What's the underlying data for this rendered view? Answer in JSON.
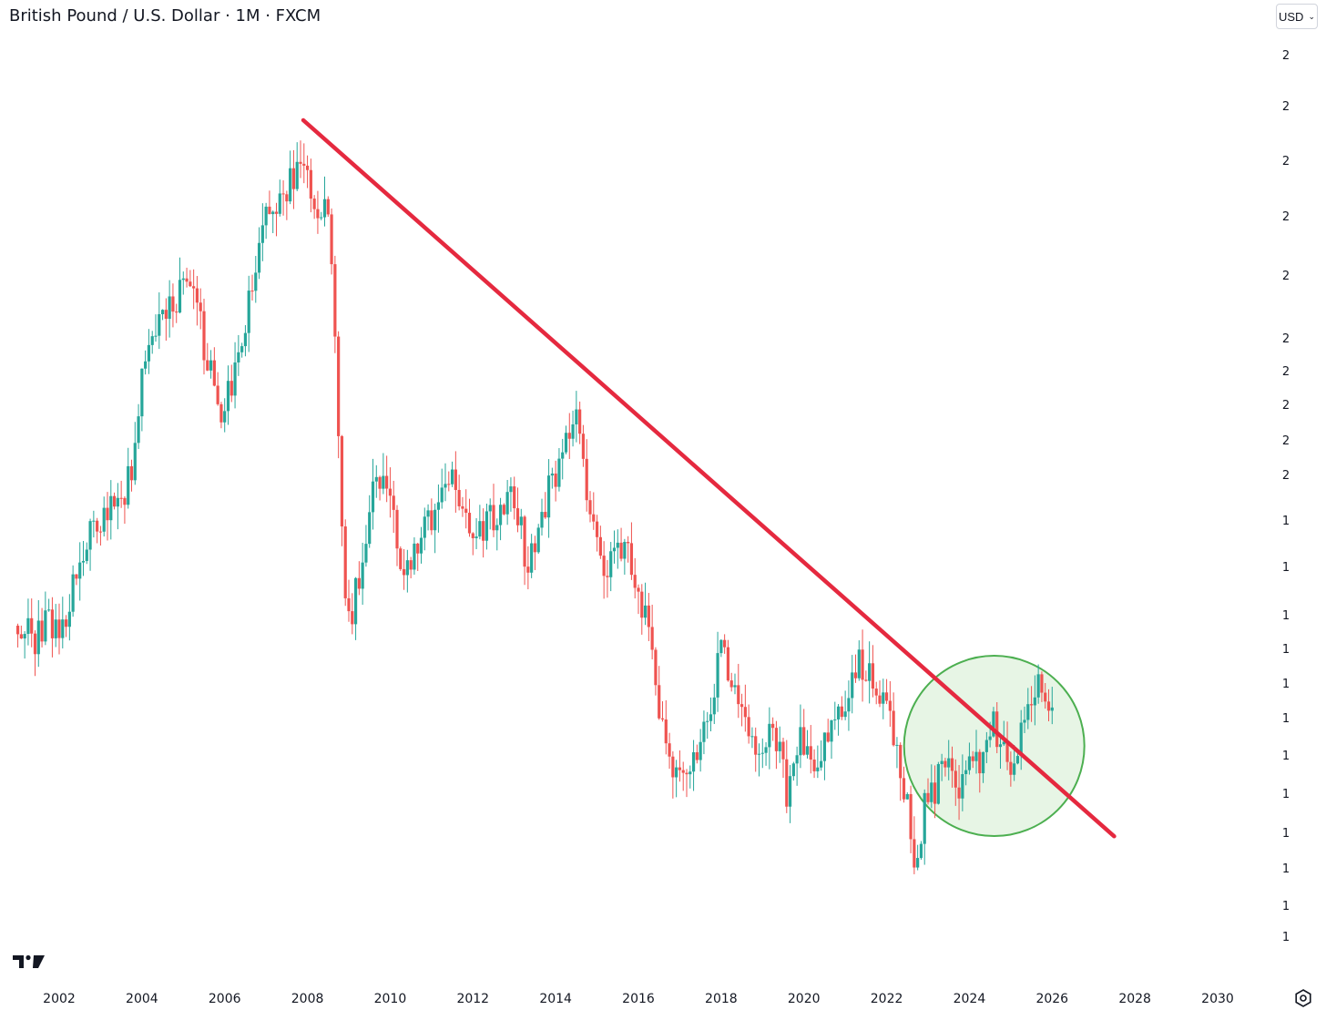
{
  "header": {
    "title": "British Pound / U.S. Dollar · 1M · FXCM",
    "currency_label": "USD",
    "currency_icon": "chevron-down-icon"
  },
  "colors": {
    "up": "#26a69a",
    "down": "#ef5350",
    "trendline": "#e5293f",
    "highlight_fill": "#e3f3e0",
    "highlight_stroke": "#4caf50"
  },
  "chart_data": {
    "type": "candlestick",
    "symbol": "GBPUSD",
    "interval": "1M",
    "source": "FXCM",
    "x_axis": {
      "ticks": [
        "2002",
        "2004",
        "2006",
        "2008",
        "2010",
        "2012",
        "2014",
        "2016",
        "2018",
        "2020",
        "2022",
        "2024",
        "2026",
        "2028",
        "2030"
      ],
      "range": [
        2001.0,
        2031.2
      ]
    },
    "y_axis": {
      "position": "right",
      "tick_labels": [
        "2",
        "2",
        "2",
        "2",
        "2",
        "2",
        "2",
        "2",
        "2",
        "2",
        "1",
        "1",
        "1",
        "1",
        "1",
        "1",
        "1",
        "1",
        "1",
        "1",
        "1",
        "1"
      ],
      "range_approx": [
        1.02,
        2.13
      ]
    },
    "series": [
      {
        "anchors": [
          [
            2001.0,
            1.44
          ],
          [
            2001.4,
            1.42
          ],
          [
            2001.8,
            1.45
          ],
          [
            2002.0,
            1.42
          ],
          [
            2002.5,
            1.53
          ],
          [
            2003.0,
            1.58
          ],
          [
            2003.5,
            1.61
          ],
          [
            2003.8,
            1.64
          ],
          [
            2004.0,
            1.78
          ],
          [
            2004.3,
            1.82
          ],
          [
            2004.6,
            1.84
          ],
          [
            2005.0,
            1.89
          ],
          [
            2005.3,
            1.86
          ],
          [
            2005.6,
            1.78
          ],
          [
            2005.9,
            1.72
          ],
          [
            2006.2,
            1.75
          ],
          [
            2006.6,
            1.87
          ],
          [
            2007.0,
            1.97
          ],
          [
            2007.5,
            2.01
          ],
          [
            2007.9,
            2.04
          ],
          [
            2008.2,
            1.99
          ],
          [
            2008.5,
            1.98
          ],
          [
            2008.7,
            1.78
          ],
          [
            2008.85,
            1.53
          ],
          [
            2009.0,
            1.44
          ],
          [
            2009.3,
            1.52
          ],
          [
            2009.6,
            1.64
          ],
          [
            2010.0,
            1.62
          ],
          [
            2010.3,
            1.49
          ],
          [
            2010.6,
            1.55
          ],
          [
            2011.0,
            1.58
          ],
          [
            2011.4,
            1.64
          ],
          [
            2011.8,
            1.57
          ],
          [
            2012.2,
            1.57
          ],
          [
            2012.6,
            1.58
          ],
          [
            2013.0,
            1.61
          ],
          [
            2013.3,
            1.52
          ],
          [
            2013.8,
            1.61
          ],
          [
            2014.3,
            1.68
          ],
          [
            2014.5,
            1.71
          ],
          [
            2014.8,
            1.6
          ],
          [
            2015.2,
            1.51
          ],
          [
            2015.5,
            1.56
          ],
          [
            2015.9,
            1.51
          ],
          [
            2016.2,
            1.44
          ],
          [
            2016.5,
            1.33
          ],
          [
            2016.8,
            1.24
          ],
          [
            2017.0,
            1.24
          ],
          [
            2017.5,
            1.29
          ],
          [
            2017.8,
            1.34
          ],
          [
            2018.0,
            1.42
          ],
          [
            2018.4,
            1.33
          ],
          [
            2018.9,
            1.28
          ],
          [
            2019.3,
            1.3
          ],
          [
            2019.6,
            1.22
          ],
          [
            2019.9,
            1.31
          ],
          [
            2020.2,
            1.24
          ],
          [
            2020.5,
            1.29
          ],
          [
            2020.9,
            1.33
          ],
          [
            2021.3,
            1.39
          ],
          [
            2021.7,
            1.36
          ],
          [
            2022.0,
            1.35
          ],
          [
            2022.3,
            1.26
          ],
          [
            2022.5,
            1.2
          ],
          [
            2022.75,
            1.12
          ],
          [
            2022.9,
            1.2
          ],
          [
            2023.2,
            1.23
          ],
          [
            2023.5,
            1.28
          ],
          [
            2023.8,
            1.22
          ],
          [
            2024.0,
            1.27
          ],
          [
            2024.3,
            1.26
          ],
          [
            2024.6,
            1.31
          ],
          [
            2024.9,
            1.26
          ],
          [
            2025.1,
            1.24
          ],
          [
            2025.35,
            1.33
          ],
          [
            2025.6,
            1.37
          ],
          [
            2025.8,
            1.34
          ],
          [
            2026.0,
            1.33
          ]
        ]
      }
    ],
    "annotations": [
      {
        "type": "trendline",
        "from": [
          2007.9,
          2.1
        ],
        "to": [
          2027.5,
          1.165
        ]
      },
      {
        "type": "circle",
        "center": [
          2024.6,
          1.283
        ],
        "note": "highlighted breakout area"
      }
    ],
    "grid": false,
    "legend": "none"
  }
}
